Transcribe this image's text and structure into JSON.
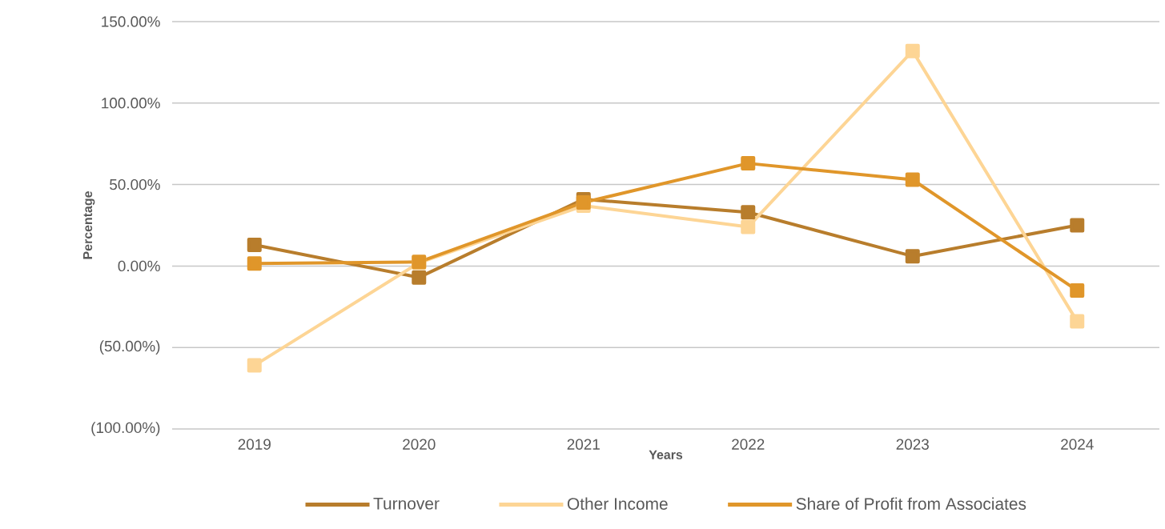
{
  "chart_data": {
    "type": "line",
    "xlabel": "Years",
    "ylabel": "Percentage",
    "categories": [
      "2019",
      "2020",
      "2021",
      "2022",
      "2023",
      "2024"
    ],
    "series": [
      {
        "name": "Turnover",
        "color": "#b87d2c",
        "values": [
          13,
          -7,
          41,
          33,
          6,
          25
        ]
      },
      {
        "name": "Other Income",
        "color": "#fdd595",
        "values": [
          -61,
          2,
          37,
          24,
          132,
          -34
        ]
      },
      {
        "name": "Share of Profit from Associates",
        "color": "#e0962a",
        "values": [
          1.5,
          2.5,
          39,
          63,
          53,
          -15
        ]
      }
    ],
    "ylim": [
      -100,
      150
    ],
    "yticks": [
      {
        "value": -100,
        "label": "(100.00%)"
      },
      {
        "value": -50,
        "label": "(50.00%)"
      },
      {
        "value": 0,
        "label": "0.00%"
      },
      {
        "value": 50,
        "label": "50.00%"
      },
      {
        "value": 100,
        "label": "100.00%"
      },
      {
        "value": 150,
        "label": "150.00%"
      }
    ],
    "grid": "y",
    "legend": "bottom",
    "marker": "square",
    "line_style": "solid"
  }
}
